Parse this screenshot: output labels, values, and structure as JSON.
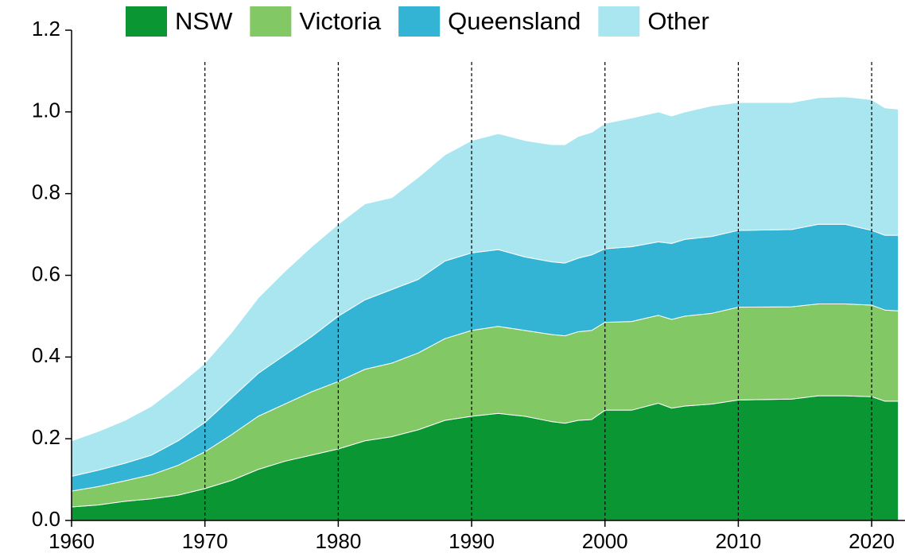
{
  "chart_data": {
    "type": "stacked_area",
    "x": [
      1960,
      1962,
      1964,
      1966,
      1968,
      1970,
      1972,
      1974,
      1976,
      1978,
      1980,
      1982,
      1984,
      1986,
      1988,
      1990,
      1992,
      1994,
      1996,
      1997,
      1998,
      1999,
      2000,
      2002,
      2004,
      2005,
      2006,
      2008,
      2010,
      2014,
      2016,
      2018,
      2020,
      2021,
      2022
    ],
    "series": [
      {
        "name": "NSW",
        "color": "#0a9632",
        "values": [
          0.033,
          0.038,
          0.047,
          0.053,
          0.062,
          0.078,
          0.098,
          0.125,
          0.145,
          0.16,
          0.175,
          0.195,
          0.205,
          0.222,
          0.245,
          0.255,
          0.262,
          0.255,
          0.242,
          0.238,
          0.245,
          0.247,
          0.27,
          0.27,
          0.287,
          0.275,
          0.28,
          0.285,
          0.295,
          0.297,
          0.305,
          0.305,
          0.303,
          0.292,
          0.292
        ]
      },
      {
        "name": "Victoria",
        "color": "#82c864",
        "values": [
          0.039,
          0.045,
          0.05,
          0.059,
          0.073,
          0.09,
          0.112,
          0.13,
          0.14,
          0.155,
          0.165,
          0.175,
          0.18,
          0.188,
          0.2,
          0.21,
          0.213,
          0.21,
          0.213,
          0.214,
          0.217,
          0.218,
          0.215,
          0.217,
          0.215,
          0.217,
          0.22,
          0.222,
          0.227,
          0.226,
          0.225,
          0.225,
          0.224,
          0.223,
          0.221
        ]
      },
      {
        "name": "Queensland",
        "color": "#34b4d4",
        "values": [
          0.036,
          0.04,
          0.043,
          0.048,
          0.06,
          0.072,
          0.09,
          0.105,
          0.12,
          0.135,
          0.16,
          0.17,
          0.18,
          0.18,
          0.19,
          0.19,
          0.188,
          0.18,
          0.178,
          0.178,
          0.18,
          0.185,
          0.18,
          0.183,
          0.18,
          0.186,
          0.188,
          0.188,
          0.188,
          0.189,
          0.195,
          0.195,
          0.183,
          0.183,
          0.185
        ]
      },
      {
        "name": "Other",
        "color": "#aae6f0",
        "values": [
          0.087,
          0.095,
          0.105,
          0.12,
          0.135,
          0.145,
          0.16,
          0.185,
          0.205,
          0.22,
          0.225,
          0.235,
          0.225,
          0.25,
          0.26,
          0.275,
          0.284,
          0.285,
          0.287,
          0.29,
          0.298,
          0.3,
          0.307,
          0.315,
          0.318,
          0.312,
          0.312,
          0.32,
          0.313,
          0.311,
          0.31,
          0.312,
          0.32,
          0.312,
          0.309
        ]
      }
    ],
    "xlim": [
      1960,
      2022.5
    ],
    "xticks": [
      1960,
      1970,
      1980,
      1990,
      2000,
      2010,
      2020
    ],
    "ylim": [
      0,
      1.2
    ],
    "yticks": [
      {
        "value": 0,
        "label": "0.0"
      },
      0.2,
      0.4,
      0.6,
      0.8,
      {
        "value": 1,
        "label": "1.0"
      },
      1.2
    ],
    "grid": "x",
    "legend": "top"
  }
}
